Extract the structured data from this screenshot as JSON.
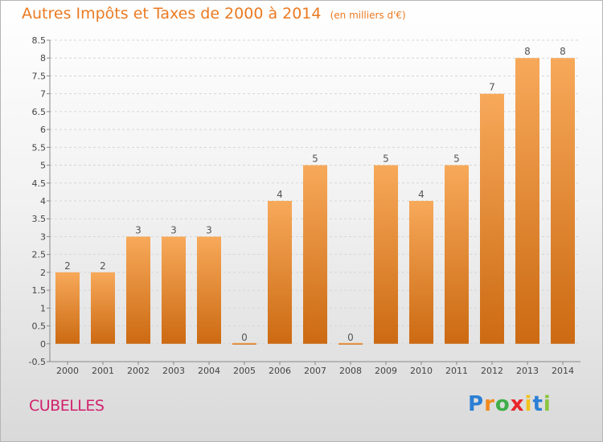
{
  "chart_data": {
    "type": "bar",
    "title": "Autres Impôts et Taxes de 2000 à 2014",
    "subtitle": "(en milliers d'€)",
    "categories": [
      "2000",
      "2001",
      "2002",
      "2003",
      "2004",
      "2005",
      "2006",
      "2007",
      "2008",
      "2009",
      "2010",
      "2011",
      "2012",
      "2013",
      "2014"
    ],
    "values": [
      2,
      2,
      3,
      3,
      3,
      0,
      4,
      5,
      0,
      5,
      4,
      5,
      7,
      8,
      8
    ],
    "data_labels": [
      "2",
      "2",
      "3",
      "3",
      "3",
      "0",
      "4",
      "5",
      "0",
      "5",
      "4",
      "5",
      "7",
      "8",
      "8"
    ],
    "ylim": [
      -0.5,
      8.5
    ],
    "yticks": [
      "-0.5",
      "0",
      "0.5",
      "1",
      "1.5",
      "2",
      "2.5",
      "3",
      "3.5",
      "4",
      "4.5",
      "5",
      "5.5",
      "6",
      "6.5",
      "7",
      "7.5",
      "8",
      "8.5"
    ],
    "grid": true,
    "legend": "none",
    "bar_color_top": "#f7a95a",
    "bar_color_bottom": "#cc6a12"
  },
  "footer": {
    "commune": "CUBELLES",
    "logo_text": "Proxiti"
  }
}
